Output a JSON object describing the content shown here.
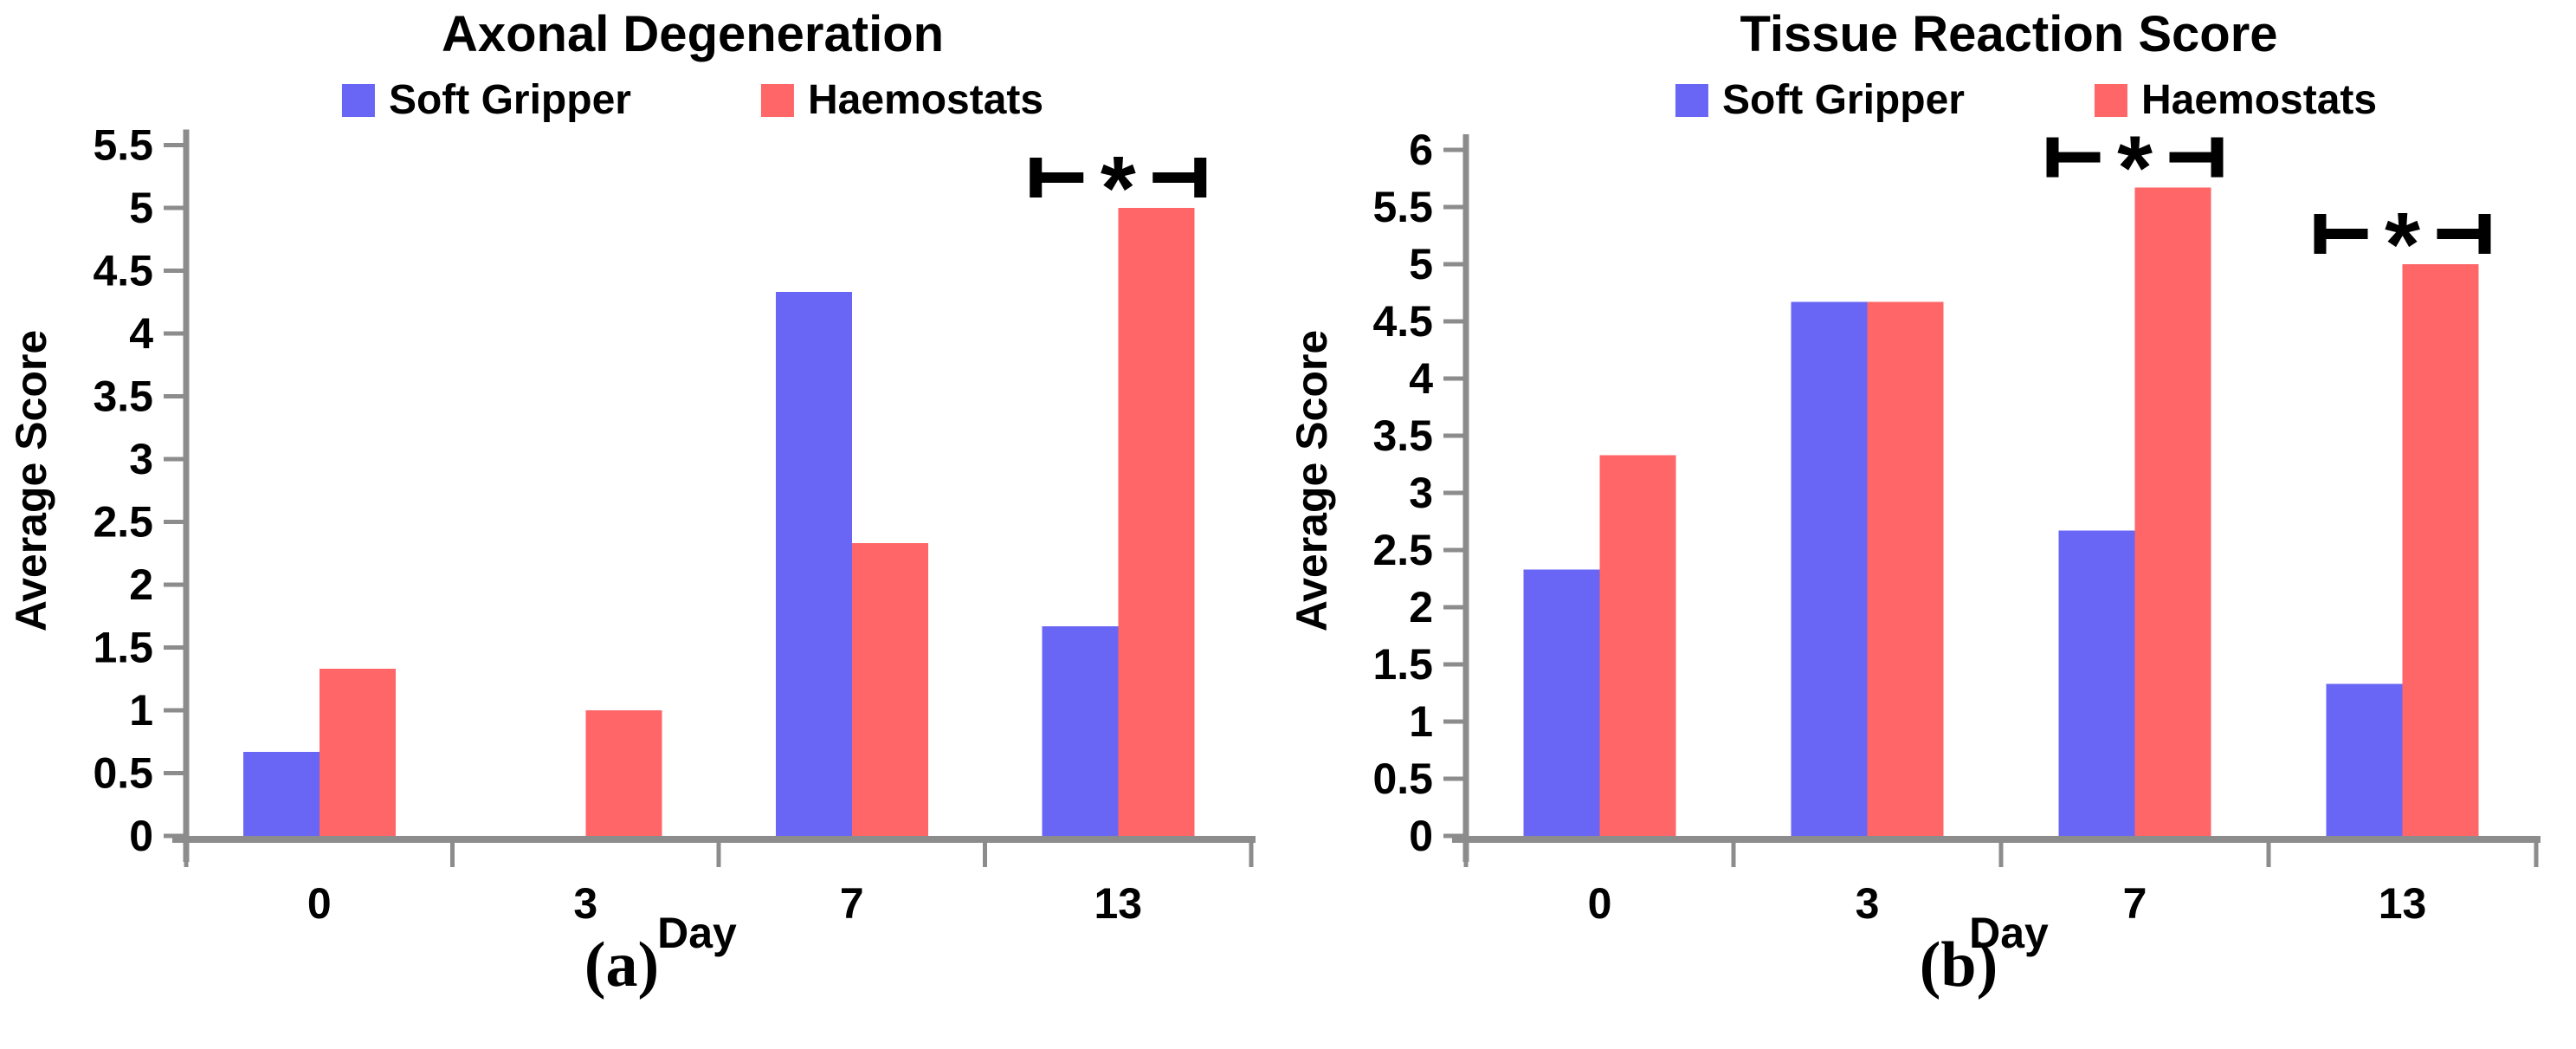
{
  "figure": {
    "background": "#ffffff",
    "axis_color": "#8c8c8c",
    "tick_color": "#8c8c8c",
    "text_color": "#000000",
    "significance_color": "#000000"
  },
  "chart_data": [
    {
      "id": "axonal-degeneration",
      "type": "bar",
      "title": "Axonal Degeneration",
      "xlabel": "Day",
      "ylabel": "Average Score",
      "caption": "(a)",
      "categories": [
        "0",
        "3",
        "7",
        "13"
      ],
      "series": [
        {
          "name": "Soft Gripper",
          "color": "#6A66F5",
          "values": [
            0.67,
            0,
            4.33,
            1.67
          ]
        },
        {
          "name": "Haemostats",
          "color": "#FF6667",
          "values": [
            1.33,
            1.0,
            2.33,
            5.0
          ]
        }
      ],
      "ylim": [
        0,
        5.5
      ],
      "ytick_step": 0.5,
      "grid": false,
      "legend_position": "top",
      "significance": [
        {
          "category": "13",
          "symbol": "*"
        }
      ]
    },
    {
      "id": "tissue-reaction-score",
      "type": "bar",
      "title": "Tissue Reaction Score",
      "xlabel": "Day",
      "ylabel": "Average Score",
      "caption": "(b)",
      "categories": [
        "0",
        "3",
        "7",
        "13"
      ],
      "series": [
        {
          "name": "Soft Gripper",
          "color": "#6A66F5",
          "values": [
            2.33,
            4.67,
            2.67,
            1.33
          ]
        },
        {
          "name": "Haemostats",
          "color": "#FF6667",
          "values": [
            3.33,
            4.67,
            5.67,
            5.0
          ]
        }
      ],
      "ylim": [
        0,
        6
      ],
      "ytick_step": 0.5,
      "grid": false,
      "legend_position": "top",
      "significance": [
        {
          "category": "7",
          "symbol": "*"
        },
        {
          "category": "13",
          "symbol": "*"
        }
      ]
    }
  ]
}
